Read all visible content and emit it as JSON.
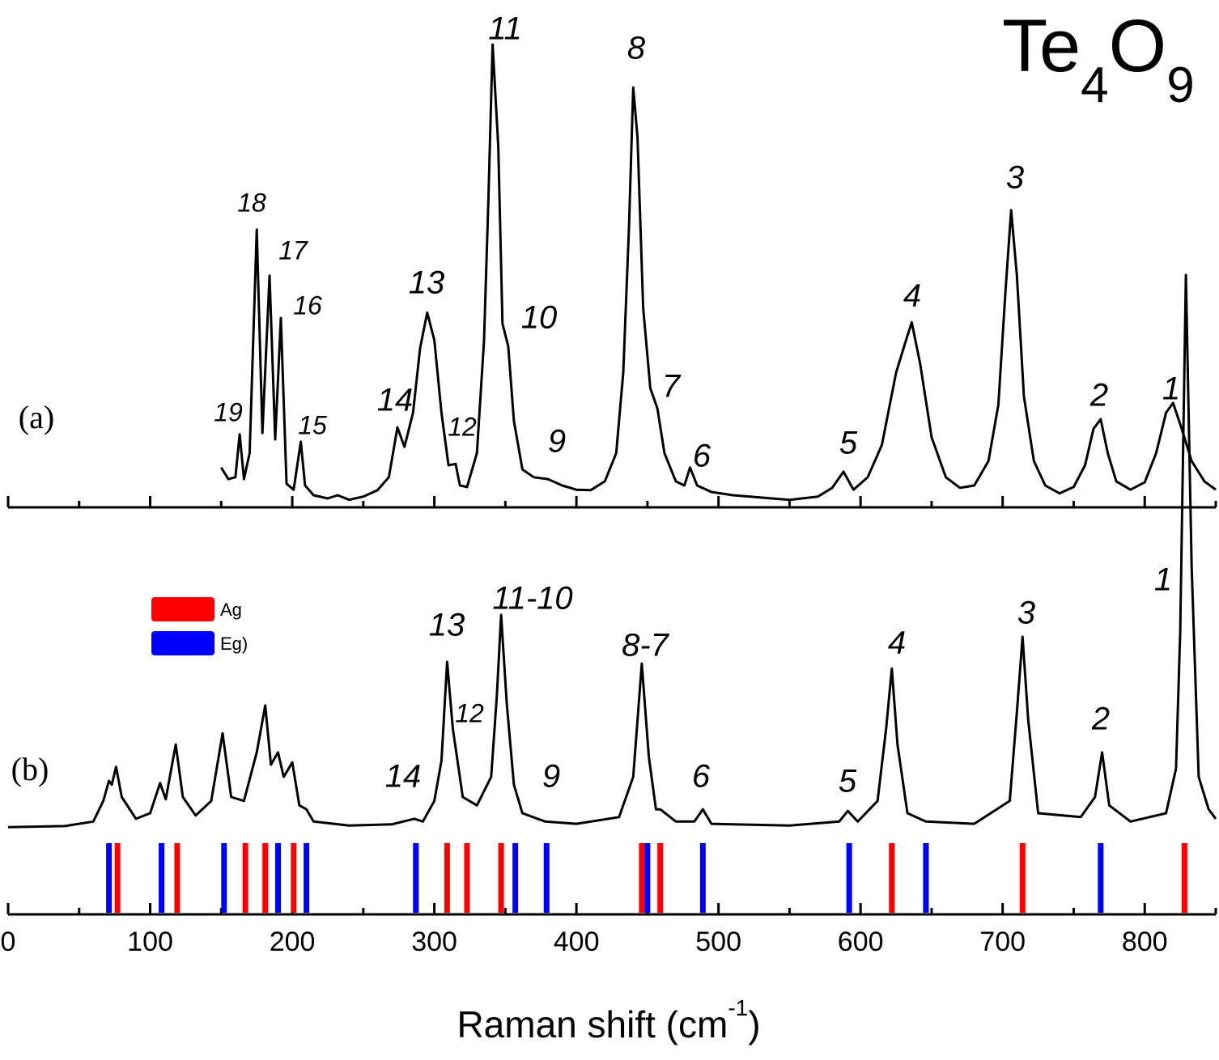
{
  "chart_data": {
    "type": "line",
    "title": [
      "Te",
      "4",
      "O",
      "9"
    ],
    "xlabel": [
      "Raman shift (cm",
      "-1",
      ")"
    ],
    "xlim": [
      0,
      850
    ],
    "xticks": [
      0,
      100,
      200,
      300,
      400,
      500,
      600,
      700,
      800
    ],
    "xminorticks": [
      50,
      150,
      250,
      350,
      450,
      550,
      650,
      750,
      850
    ],
    "panels": [
      {
        "label": "(a)",
        "ylim": [
          0,
          100
        ],
        "series": [
          {
            "color": "#000000",
            "x": [
              150,
              155,
              160,
              163,
              166,
              170,
              175,
              179,
              184,
              188,
              192,
              196,
              201,
              206,
              209,
              215,
              225,
              232,
              240,
              250,
              260,
              268,
              274,
              279,
              285,
              290,
              295,
              300,
              305,
              310,
              315,
              318,
              323,
              330,
              335,
              338,
              341,
              345,
              348,
              352,
              356,
              362,
              370,
              380,
              390,
              400,
              410,
              420,
              428,
              433,
              437,
              440,
              443,
              447,
              452,
              457,
              462,
              470,
              476,
              480,
              485,
              495,
              510,
              530,
              550,
              570,
              580,
              588,
              595,
              605,
              615,
              625,
              632,
              636,
              642,
              650,
              660,
              670,
              680,
              690,
              697,
              702,
              706,
              710,
              715,
              722,
              730,
              740,
              750,
              758,
              764,
              769,
              774,
              780,
              790,
              800,
              808,
              815,
              820,
              826,
              833,
              842,
              850
            ],
            "values": [
              7.4,
              4.9,
              5.3,
              14.6,
              4.9,
              10.5,
              59,
              14.9,
              49,
              13.5,
              39.8,
              3.9,
              2.6,
              13,
              3.5,
              1.4,
              0.7,
              1.4,
              0.4,
              1.1,
              2.5,
              5.3,
              16.1,
              11.9,
              19.3,
              33.3,
              41,
              35,
              19.3,
              7.9,
              8.2,
              3.5,
              3.2,
              10.5,
              35,
              65,
              99.1,
              77,
              38.6,
              33.7,
              17.5,
              7,
              5.3,
              4.9,
              3.5,
              2.6,
              2.5,
              4.4,
              10.5,
              28,
              59.6,
              89.8,
              79,
              42,
              24.6,
              20.2,
              10.5,
              4.4,
              3.5,
              7.4,
              3.5,
              2.1,
              1.4,
              0.9,
              0.4,
              1.1,
              3,
              6.5,
              2.6,
              5.3,
              12.3,
              28,
              35,
              38.9,
              29.8,
              14,
              5.3,
              3,
              3.5,
              8.8,
              21,
              45.6,
              63.2,
              49,
              22.8,
              8.8,
              3.5,
              1.8,
              3.2,
              7.9,
              15.8,
              17.9,
              10.5,
              4.4,
              2.6,
              4.2,
              10.5,
              19.3,
              21.4,
              15.8,
              8.8,
              4.4,
              2.6
            ]
          }
        ],
        "annotations": [
          "19",
          "18",
          "17",
          "16",
          "15",
          "14",
          "13",
          "12",
          "11",
          "10",
          "9",
          "8",
          "7",
          "6",
          "5",
          "4",
          "3",
          "2",
          "1"
        ]
      },
      {
        "label": "(b)",
        "ylim": [
          0,
          100
        ],
        "series": [
          {
            "color": "#000000",
            "x": [
              0,
              40,
              60,
              67,
              71,
              73,
              76,
              80,
              90,
              100,
              107,
              111,
              118,
              123,
              132,
              143,
              151,
              157,
              166,
              175,
              181,
              185,
              190,
              194,
              200,
              205,
              210,
              215,
              240,
              270,
              286,
              292,
              300,
              305,
              309,
              313,
              320,
              330,
              340,
              344,
              347,
              351,
              356,
              362,
              378,
              400,
              430,
              440,
              446,
              451,
              456,
              459,
              470,
              483,
              489,
              495,
              550,
              585,
              591,
              598,
              612,
              618,
              622,
              626,
              633,
              646,
              680,
              705,
              710,
              714,
              718,
              725,
              755,
              765,
              770,
              775,
              790,
              815,
              822,
              825,
              829,
              833,
              838,
              845,
              850
            ],
            "values": [
              0.4,
              0.6,
              1.4,
              5.1,
              8.7,
              8,
              11.2,
              5.8,
              1.9,
              2.9,
              8.3,
              5.4,
              15.2,
              5.8,
              2.5,
              5.1,
              17.2,
              5.8,
              5.1,
              13.8,
              22.2,
              11.6,
              13.8,
              9.4,
              12,
              4.3,
              3.6,
              1.4,
              0.7,
              0.9,
              1.9,
              1.4,
              5.1,
              12.3,
              30,
              18.1,
              5.8,
              4.3,
              9.4,
              23.9,
              38.4,
              22.5,
              8,
              2.9,
              1.4,
              1,
              2.2,
              9.4,
              29.7,
              13,
              3.6,
              3.6,
              1.4,
              1.4,
              3.6,
              1,
              0.7,
              1.4,
              3.3,
              1.4,
              5.1,
              18.1,
              28.8,
              15.2,
              2.9,
              1.4,
              1,
              5.1,
              21,
              34.5,
              19.6,
              2.9,
              2.2,
              5.8,
              13.8,
              4.3,
              1.4,
              2.9,
              10.9,
              35.5,
              99.3,
              47.1,
              9.4,
              3.6,
              1.9
            ]
          }
        ],
        "modes": [
          {
            "name": "Ag",
            "color": "#ff0000",
            "x": [
              77,
              119,
              167,
              181,
              201,
              309,
              323,
              347,
              446,
              459,
              622,
              714,
              828
            ]
          },
          {
            "name": "Eg)",
            "color": "#0000ff",
            "x": [
              71,
              108,
              152,
              190,
              210,
              287,
              357,
              379,
              450,
              489,
              592,
              646,
              769
            ]
          }
        ],
        "annotations": [
          "14",
          "13",
          "12",
          "11-10",
          "9",
          "8-7",
          "6",
          "5",
          "4",
          "3",
          "2",
          "1"
        ]
      }
    ]
  }
}
